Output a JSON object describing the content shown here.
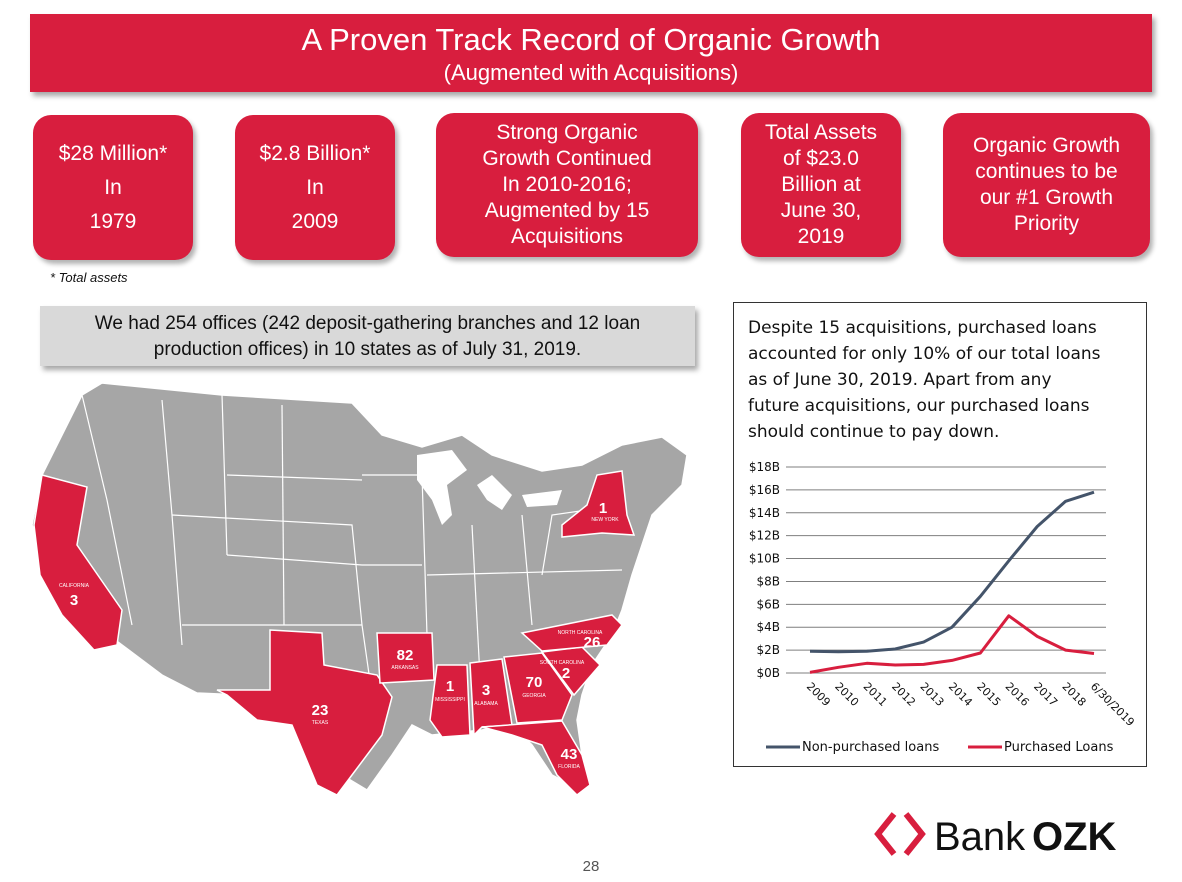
{
  "header": {
    "title": "A Proven Track Record of Organic Growth",
    "subtitle": "(Augmented with Acquisitions)"
  },
  "boxes": [
    {
      "lines": [
        "$28 Million*",
        "In",
        "1979"
      ]
    },
    {
      "lines": [
        "$2.8 Billion*",
        "In",
        "2009"
      ]
    },
    {
      "lines": [
        "Strong Organic",
        "Growth Continued",
        "In 2010-2016;",
        "Augmented by 15",
        "Acquisitions"
      ]
    },
    {
      "lines": [
        "Total Assets",
        "of $23.0",
        "Billion at",
        "June 30,",
        "2019"
      ]
    },
    {
      "lines": [
        "Organic Growth",
        "continues to be",
        "our #1 Growth",
        "Priority"
      ]
    }
  ],
  "footnote": "* Total assets",
  "offices": {
    "line1": "We had 254 offices (242 deposit-gathering branches and 12 loan",
    "line2": "production offices) in 10 states as of July 31, 2019."
  },
  "map": {
    "highlight_color": "#d81e3e",
    "base_color": "#a6a6a6",
    "states": [
      {
        "name": "CALIFORNIA",
        "count": "3"
      },
      {
        "name": "TEXAS",
        "count": "23"
      },
      {
        "name": "ARKANSAS",
        "count": "82"
      },
      {
        "name": "MISSISSIPPI",
        "count": "1"
      },
      {
        "name": "ALABAMA",
        "count": "3"
      },
      {
        "name": "GEORGIA",
        "count": "70"
      },
      {
        "name": "FLORIDA",
        "count": "43"
      },
      {
        "name": "SOUTH CAROLINA",
        "count": "2"
      },
      {
        "name": "NORTH CAROLINA",
        "count": "26"
      },
      {
        "name": "NEW YORK",
        "count": "1"
      }
    ]
  },
  "chart_description": {
    "line1": "Despite 15 acquisitions, purchased loans",
    "line2": "accounted for only 10% of our total loans",
    "line3": "as of June 30, 2019.  Apart from any",
    "line4": "future acquisitions, our purchased loans",
    "line5": "should continue to pay down."
  },
  "chart_data": {
    "type": "line",
    "categories": [
      "2009",
      "2010",
      "2011",
      "2012",
      "2013",
      "2014",
      "2015",
      "2016",
      "2017",
      "2018",
      "6/30/2019"
    ],
    "series": [
      {
        "name": "Non-purchased loans",
        "color": "#44546a",
        "values": [
          1.9,
          1.85,
          1.9,
          2.1,
          2.7,
          4.0,
          6.7,
          9.8,
          12.8,
          15.0,
          15.8
        ]
      },
      {
        "name": "Purchased Loans",
        "color": "#d81e3e",
        "values": [
          0.05,
          0.5,
          0.85,
          0.7,
          0.75,
          1.1,
          1.75,
          5.0,
          3.2,
          2.0,
          1.7
        ]
      }
    ],
    "yticks": [
      "$0B",
      "$2B",
      "$4B",
      "$6B",
      "$8B",
      "$10B",
      "$12B",
      "$14B",
      "$16B",
      "$18B"
    ],
    "ylim": [
      0,
      18
    ],
    "grid": true,
    "legend": "bottom"
  },
  "logo": {
    "word1": "Bank",
    "word2": "OZK"
  },
  "page_number": "28"
}
